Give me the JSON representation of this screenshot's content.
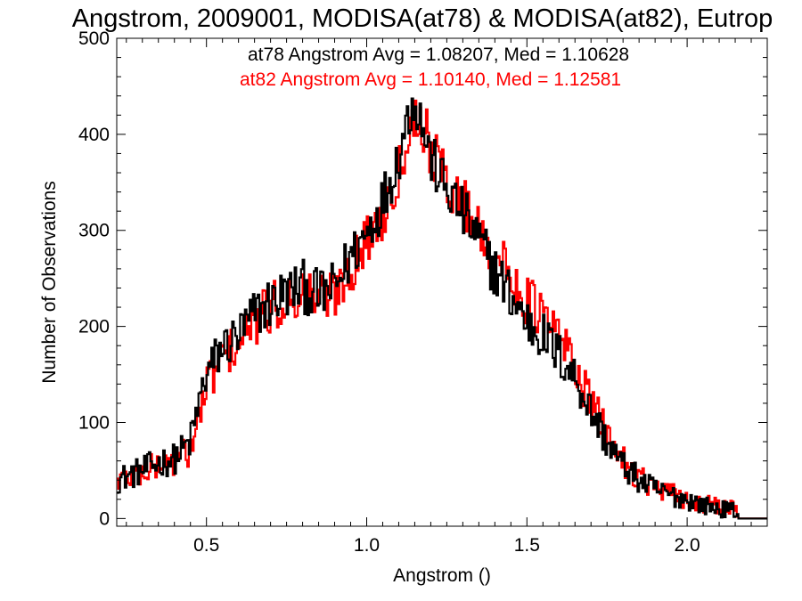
{
  "chart_data": {
    "type": "line",
    "style": "step-histogram",
    "title": "Angstrom, 2009001, MODISA(at78) & MODISA(at82), Eutrop",
    "xlabel": "Angstrom ()",
    "ylabel": "Number of Observations",
    "xlim": [
      0.22,
      2.25
    ],
    "ylim": [
      -8,
      500
    ],
    "x_ticks": [
      0.5,
      1.0,
      1.5,
      2.0
    ],
    "x_tick_labels": [
      "0.5",
      "1.0",
      "1.5",
      "2.0"
    ],
    "y_ticks": [
      0,
      100,
      200,
      300,
      400,
      500
    ],
    "y_tick_labels": [
      "0",
      "100",
      "200",
      "300",
      "400",
      "500"
    ],
    "grid": false,
    "legend_position": "top-right",
    "series": [
      {
        "name": "at78",
        "color": "#000000",
        "annotation": "at78 Angstrom Avg = 1.08207, Med = 1.10628",
        "x": [
          0.22,
          0.3,
          0.35,
          0.4,
          0.45,
          0.48,
          0.5,
          0.55,
          0.6,
          0.65,
          0.7,
          0.75,
          0.8,
          0.85,
          0.9,
          0.95,
          1.0,
          1.05,
          1.1,
          1.13,
          1.15,
          1.18,
          1.2,
          1.25,
          1.3,
          1.35,
          1.4,
          1.45,
          1.5,
          1.55,
          1.6,
          1.65,
          1.7,
          1.75,
          1.8,
          1.85,
          1.9,
          1.95,
          2.0,
          2.05,
          2.1,
          2.15,
          2.16,
          2.25
        ],
        "y": [
          40,
          50,
          58,
          62,
          80,
          125,
          150,
          178,
          190,
          212,
          225,
          235,
          242,
          232,
          240,
          272,
          298,
          330,
          378,
          420,
          438,
          402,
          375,
          342,
          318,
          290,
          258,
          232,
          205,
          190,
          170,
          148,
          112,
          80,
          55,
          40,
          30,
          24,
          20,
          14,
          10,
          8,
          0,
          0
        ]
      },
      {
        "name": "at82",
        "color": "#ff0000",
        "annotation": "at82 Angstrom Avg = 1.10140, Med = 1.12581",
        "x": [
          0.22,
          0.3,
          0.35,
          0.4,
          0.45,
          0.48,
          0.5,
          0.55,
          0.6,
          0.65,
          0.7,
          0.75,
          0.8,
          0.85,
          0.9,
          0.95,
          1.0,
          1.05,
          1.1,
          1.13,
          1.15,
          1.18,
          1.2,
          1.25,
          1.3,
          1.35,
          1.4,
          1.45,
          1.5,
          1.55,
          1.6,
          1.65,
          1.7,
          1.75,
          1.8,
          1.85,
          1.9,
          1.95,
          2.0,
          2.05,
          2.1,
          2.15,
          2.16,
          2.25
        ],
        "y": [
          40,
          48,
          55,
          60,
          72,
          108,
          138,
          168,
          182,
          202,
          218,
          228,
          236,
          228,
          235,
          262,
          288,
          318,
          362,
          405,
          420,
          408,
          385,
          350,
          330,
          305,
          275,
          250,
          228,
          210,
          190,
          160,
          120,
          88,
          60,
          44,
          32,
          25,
          20,
          15,
          12,
          10,
          0,
          0
        ]
      }
    ]
  }
}
